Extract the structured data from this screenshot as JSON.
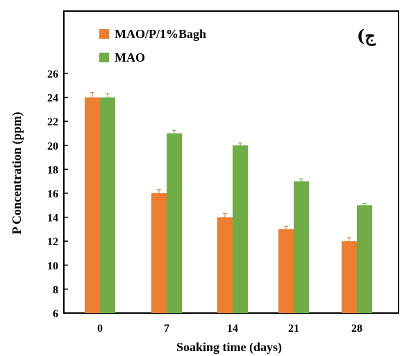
{
  "chart_data": {
    "type": "bar",
    "xlabel": "Soaking time (days)",
    "ylabel": "P Concentration (ppm)",
    "categories": [
      "0",
      "7",
      "14",
      "21",
      "28"
    ],
    "ylim": [
      6,
      26
    ],
    "yticks": [
      6,
      8,
      10,
      12,
      14,
      16,
      18,
      20,
      22,
      24,
      26
    ],
    "grid": false,
    "legend_position": "top-left",
    "annotation": "(ج",
    "series": [
      {
        "name": "MAO/P/1%Bagh",
        "color": "#ED7D31",
        "values": [
          24,
          16,
          14,
          13,
          12
        ],
        "errors": [
          0.4,
          0.3,
          0.3,
          0.25,
          0.3
        ]
      },
      {
        "name": "MAO",
        "color": "#70AD47",
        "values": [
          24,
          21,
          20,
          17,
          15
        ],
        "errors": [
          0.3,
          0.25,
          0.2,
          0.2,
          0.15
        ]
      }
    ]
  }
}
